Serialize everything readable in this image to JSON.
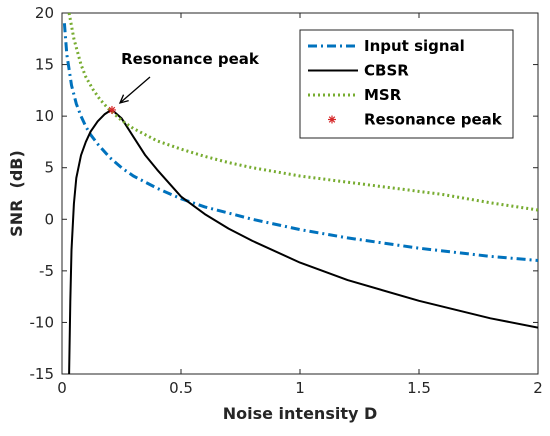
{
  "chart_data": {
    "type": "line",
    "xlabel": "Noise intensity D",
    "ylabel": "SNR  (dB)",
    "xlim": [
      0,
      2
    ],
    "ylim": [
      -15,
      20
    ],
    "xticks": [
      0,
      0.5,
      1,
      1.5,
      2
    ],
    "xtick_labels": [
      "0",
      "0.5",
      "1",
      "1.5",
      "2"
    ],
    "yticks": [
      -15,
      -10,
      -5,
      0,
      5,
      10,
      15,
      20
    ],
    "ytick_labels": [
      "-15",
      "-10",
      "-5",
      "0",
      "5",
      "10",
      "15",
      "20"
    ],
    "grid": false,
    "legend_position": "top-right",
    "series": [
      {
        "name": "Input signal",
        "color": "#0072BD",
        "style": "dashdot",
        "x": [
          0.01,
          0.02,
          0.04,
          0.06,
          0.08,
          0.1,
          0.12,
          0.15,
          0.2,
          0.25,
          0.3,
          0.4,
          0.5,
          0.6,
          0.8,
          1.0,
          1.2,
          1.5,
          1.8,
          2.0
        ],
        "y": [
          19.0,
          16.0,
          13.0,
          11.2,
          10.0,
          9.0,
          8.2,
          7.3,
          6.0,
          5.0,
          4.2,
          3.0,
          2.0,
          1.2,
          0.0,
          -1.0,
          -1.8,
          -2.8,
          -3.6,
          -4.0
        ]
      },
      {
        "name": "CBSR",
        "color": "#000000",
        "style": "solid",
        "x": [
          0.03,
          0.035,
          0.04,
          0.05,
          0.06,
          0.08,
          0.1,
          0.12,
          0.15,
          0.18,
          0.2,
          0.21,
          0.22,
          0.25,
          0.3,
          0.35,
          0.4,
          0.5,
          0.6,
          0.7,
          0.8,
          1.0,
          1.2,
          1.5,
          1.8,
          2.0
        ],
        "y": [
          -15,
          -8.0,
          -3.0,
          1.5,
          4.0,
          6.2,
          7.5,
          8.5,
          9.5,
          10.2,
          10.5,
          10.5,
          10.4,
          9.8,
          8.0,
          6.2,
          4.8,
          2.2,
          0.5,
          -0.9,
          -2.1,
          -4.2,
          -5.9,
          -7.9,
          -9.6,
          -10.5
        ]
      },
      {
        "name": "MSR",
        "color": "#77AC30",
        "style": "dotted",
        "x": [
          0.03,
          0.05,
          0.08,
          0.1,
          0.13,
          0.16,
          0.2,
          0.25,
          0.3,
          0.35,
          0.4,
          0.5,
          0.6,
          0.7,
          0.8,
          1.0,
          1.2,
          1.4,
          1.6,
          1.8,
          2.0
        ],
        "y": [
          20,
          17.5,
          15.0,
          13.8,
          12.6,
          11.6,
          10.6,
          9.6,
          8.8,
          8.2,
          7.6,
          6.8,
          6.1,
          5.5,
          5.0,
          4.2,
          3.6,
          3.0,
          2.4,
          1.6,
          0.9
        ]
      },
      {
        "name": "Resonance peak",
        "color": "#D62728",
        "style": "marker-asterisk",
        "x": [
          0.21
        ],
        "y": [
          10.6
        ]
      }
    ],
    "annotation": {
      "text": "Resonance peak",
      "x": 0.21,
      "y": 10.6
    }
  }
}
